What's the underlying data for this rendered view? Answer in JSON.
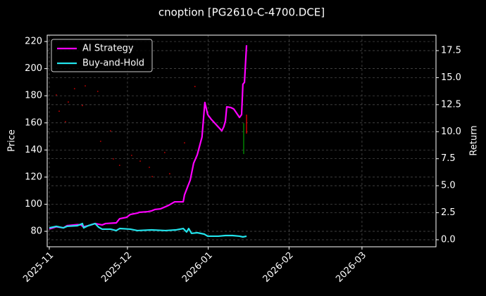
{
  "chart_data": {
    "type": "line",
    "title": "cnoption [PG2610-C-4700.DCE]",
    "ylabel": "Price",
    "y2label": "Return",
    "xlim": [
      -0.8,
      148.4
    ],
    "xticks": [
      {
        "value": 0,
        "label": "2025-11"
      },
      {
        "value": 30,
        "label": "2025-12"
      },
      {
        "value": 61,
        "label": "2026-01"
      },
      {
        "value": 92,
        "label": "2026-02"
      },
      {
        "value": 120,
        "label": "2026-03"
      }
    ],
    "ylim": [
      68.6,
      224.7
    ],
    "yticks": [
      80,
      100,
      120,
      140,
      160,
      180,
      200,
      220
    ],
    "y2lim": [
      -0.65,
      18.93
    ],
    "y2ticks": [
      {
        "value": 0,
        "label": "0.0"
      },
      2.5,
      {
        "value": 5,
        "label": "5.0"
      },
      7.5,
      {
        "value": 10,
        "label": "10.0"
      },
      12.5,
      {
        "value": 15,
        "label": "15.0"
      },
      17.5
    ],
    "grid": true,
    "legend": "upper left",
    "series": [
      {
        "name": "AI Strategy",
        "color": "#ff00ff",
        "axis": "y2",
        "x": [
          0,
          2.7,
          5.4,
          6.8,
          10.8,
          12.2,
          13,
          14.9,
          17.6,
          20.3,
          21.6,
          25.7,
          27,
          29.7,
          31.1,
          33.8,
          34.6,
          37.8,
          39.2,
          40.5,
          42.7,
          44.6,
          45.9,
          48.1,
          51.4,
          51.9,
          54.1,
          55.4,
          56.8,
          58.6,
          59.7,
          60.8,
          62.2,
          66.2,
          67,
          67.6,
          68.1,
          69.7,
          70.8,
          73,
          73.8,
          74.3,
          74.9,
          75.7
        ],
        "values": [
          1.0,
          1.2,
          1.1,
          1.3,
          1.4,
          1.37,
          1.2,
          1.3,
          1.5,
          1.37,
          1.5,
          1.56,
          1.95,
          2.08,
          2.34,
          2.47,
          2.54,
          2.6,
          2.67,
          2.8,
          2.86,
          3.06,
          3.2,
          3.51,
          3.51,
          4.16,
          5.53,
          7.09,
          7.87,
          9.5,
          12.7,
          11.58,
          11.13,
          10.08,
          10.47,
          11.0,
          12.3,
          12.23,
          12.1,
          11.32,
          11.58,
          14.38,
          14.57,
          18.0
        ]
      },
      {
        "name": "Buy-and-Hold",
        "color": "#22e4ec",
        "axis": "y2",
        "x": [
          0,
          2.7,
          5.4,
          6.8,
          10.8,
          12.7,
          13.2,
          14.9,
          17.6,
          18.9,
          20.3,
          23.5,
          25.7,
          27,
          31.1,
          33.8,
          39.2,
          44.6,
          48.6,
          51.4,
          52.7,
          53.5,
          54.6,
          56.8,
          59.5,
          60.8,
          64.9,
          67.6,
          70.3,
          73,
          74.3,
          75.7
        ],
        "values": [
          1.1,
          1.24,
          1.1,
          1.24,
          1.3,
          1.5,
          1.1,
          1.3,
          1.5,
          1.17,
          0.98,
          0.98,
          0.85,
          1.04,
          0.98,
          0.85,
          0.91,
          0.85,
          0.91,
          1.04,
          0.72,
          1.04,
          0.59,
          0.65,
          0.52,
          0.33,
          0.33,
          0.39,
          0.39,
          0.33,
          0.26,
          0.33
        ]
      }
    ],
    "price_points": {
      "color": "#cc0000",
      "x": [
        2.7,
        3.8,
        6.2,
        7.3,
        9.7,
        12.7,
        13.8,
        18.6,
        19.7,
        23.5,
        24.6,
        27.0,
        31.6,
        34.9,
        38.4,
        39.5,
        44.3,
        46.2,
        51.9,
        55.9
      ],
      "values": [
        180.6,
        168.6,
        160.9,
        175.4,
        185.2,
        172.8,
        187.3,
        183.2,
        146.4,
        154.1,
        133.4,
        128.7,
        136.0,
        131.8,
        127.2,
        120.4,
        138.1,
        122.5,
        145.3,
        186.8
      ]
    },
    "price_ranges": [
      {
        "x": 74.6,
        "low": 137.0,
        "high": 159.8,
        "color": "#00a000"
      },
      {
        "x": 75.7,
        "low": 152.1,
        "high": 166.1,
        "color": "#ff0000"
      }
    ]
  }
}
